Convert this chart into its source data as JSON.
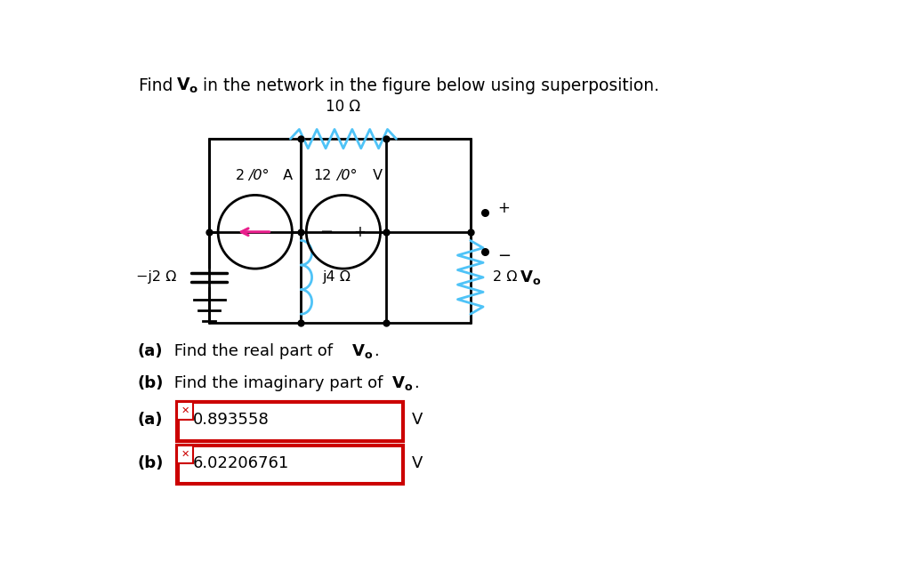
{
  "bg_color": "#ffffff",
  "wire_color": "#000000",
  "cyan_color": "#4fc3f7",
  "pink_color": "#e91e8c",
  "black": "#000000",
  "red_box": "#cc0000",
  "lw": 2.0,
  "title_parts": [
    "Find ",
    "Vo",
    " in the network in the figure below using superposition."
  ],
  "circuit": {
    "xl": 0.135,
    "xm1": 0.265,
    "xm2": 0.385,
    "xr": 0.505,
    "yt": 0.835,
    "yh": 0.62,
    "yb": 0.41
  },
  "labels": {
    "res10": "10 Ω",
    "res_j4": "j4 Ω",
    "res_2": "2 Ω",
    "cap": "−j2 Ω",
    "cs_num": "2",
    "cs_angle": "/0°",
    "cs_unit": " A",
    "vs_num": "12",
    "vs_angle": "/0°",
    "vs_unit": " V",
    "vo": "V",
    "vo_sub": "o",
    "plus": "+",
    "minus": "−"
  },
  "answers": {
    "a_label": "(a)",
    "b_label": "(b)",
    "a_val": "0.893558",
    "b_val": "6.02206761",
    "unit": "V"
  },
  "questions": {
    "qa_bold": "(a)",
    "qa_rest": " Find the real part of ",
    "qa_vo": "Vo",
    "qb_bold": "(b)",
    "qb_rest": " Find the imaginary part of ",
    "qb_vo": "Vo"
  }
}
